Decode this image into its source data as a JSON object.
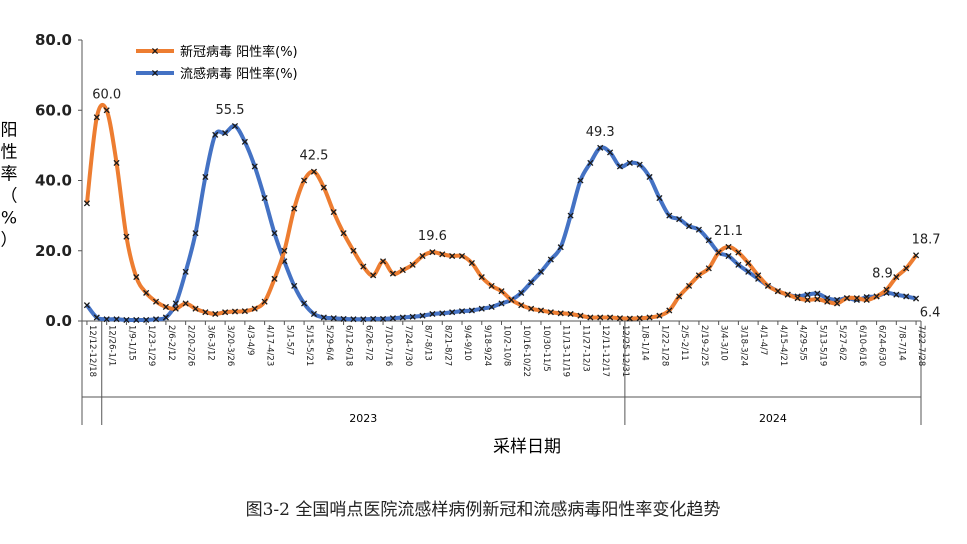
{
  "figure_caption": "图3-2   全国哨点医院流感样病例新冠和流感病毒阳性率变化趋势",
  "chart_data": {
    "type": "line",
    "title": "",
    "xlabel": "采样日期",
    "ylabel": "阳性率（%）",
    "ylim": [
      0,
      80
    ],
    "yticks": [
      "0.0",
      "20.0",
      "40.0",
      "60.0",
      "80.0"
    ],
    "grid": false,
    "legend_position": "top-left",
    "x": [
      "12/12-12/18",
      "12/19-12/25",
      "12/26-1/1",
      "1/2-1/8",
      "1/9-1/15",
      "1/16-1/22",
      "1/23-1/29",
      "1/30-2/5",
      "2/6-2/12",
      "2/13-2/19",
      "2/20-2/26",
      "2/27-3/5",
      "3/6-3/12",
      "3/13-3/19",
      "3/20-3/26",
      "3/27-4/2",
      "4/3-4/9",
      "4/10-4/16",
      "4/17-4/23",
      "4/24-4/30",
      "5/1-5/7",
      "5/8-5/14",
      "5/15-5/21",
      "5/22-5/28",
      "5/29-6/4",
      "6/5-6/11",
      "6/12-6/18",
      "6/19-6/25",
      "6/26-7/2",
      "7/3-7/9",
      "7/10-7/16",
      "7/17-7/23",
      "7/24-7/30",
      "7/31-8/6",
      "8/7-8/13",
      "8/14-8/20",
      "8/21-8/27",
      "8/28-9/3",
      "9/4-9/10",
      "9/11-9/17",
      "9/18-9/24",
      "9/25-10/1",
      "10/2-10/8",
      "10/9-10/15",
      "10/16-10/22",
      "10/23-10/29",
      "10/30-11/5",
      "11/6-11/12",
      "11/13-11/19",
      "11/20-11/26",
      "11/27-12/3",
      "12/4-12/10",
      "12/11-12/17",
      "12/18-12/24",
      "12/25-12/31",
      "1/1-1/7",
      "1/8-1/14",
      "1/15-1/21",
      "1/22-1/28",
      "1/29-2/4",
      "2/5-2/11",
      "2/12-2/18",
      "2/19-2/25",
      "2/26-3/3",
      "3/4-3/10",
      "3/11-3/17",
      "3/18-3/24",
      "3/25-3/31",
      "4/1-4/7",
      "4/8-4/14",
      "4/15-4/21",
      "4/22-4/28",
      "4/29-5/5",
      "5/6-5/12",
      "5/13-5/19",
      "5/20-5/26",
      "5/27-6/2",
      "6/3-6/9",
      "6/10-6/16",
      "6/17-6/23",
      "6/24-6/30",
      "7/1-7/7",
      "7/8-7/14",
      "7/15-7/21",
      "7/22-7/28"
    ],
    "x_tick_labels_shown": [
      "12/12-12/18",
      "12/26-1/1",
      "1/9-1/15",
      "1/23-1/29",
      "2/6-2/12",
      "2/20-2/26",
      "3/6-3/12",
      "3/20-3/26",
      "4/3-4/9",
      "4/17-4/23",
      "5/1-5/7",
      "5/15-5/21",
      "5/29-6/4",
      "6/12-6/18",
      "6/26-7/2",
      "7/10-7/16",
      "7/24-7/30",
      "8/7-8/13",
      "8/21-8/27",
      "9/4-9/10",
      "9/18-9/24",
      "10/2-10/8",
      "10/16-10/22",
      "10/30-11/5",
      "11/13-11/19",
      "11/27-12/3",
      "12/11-12/17",
      "12/25-12/31",
      "1/8-1/14",
      "1/22-1/28",
      "2/5-2/11",
      "2/19-2/25",
      "3/4-3/10",
      "3/18-3/24",
      "4/1-4/7",
      "4/15-4/21",
      "4/29-5/5",
      "5/13-5/19",
      "5/27-6/2",
      "6/10-6/16",
      "6/24-6/30",
      "7/8-7/14",
      "7/22-7/28"
    ],
    "year_groups": [
      {
        "label": "2023",
        "start": 2,
        "end": 54
      },
      {
        "label": "2024",
        "start": 55,
        "end": 84
      }
    ],
    "series": [
      {
        "name": "新冠病毒 阳性率(%)",
        "color": "#ED7D31",
        "values": [
          33.5,
          58.0,
          60.0,
          45.0,
          24.0,
          12.5,
          8.0,
          5.5,
          4.0,
          3.5,
          5.0,
          3.5,
          2.5,
          2.0,
          2.5,
          2.7,
          2.8,
          3.5,
          5.5,
          12.0,
          20.0,
          32.0,
          40.0,
          42.5,
          38.0,
          31.0,
          25.0,
          20.0,
          15.5,
          13.0,
          17.0,
          13.5,
          14.5,
          16.0,
          18.5,
          19.6,
          19.0,
          18.5,
          18.5,
          16.5,
          12.5,
          10.0,
          8.5,
          6.0,
          4.5,
          3.5,
          3.0,
          2.5,
          2.2,
          2.0,
          1.5,
          1.0,
          1.0,
          1.0,
          0.8,
          0.7,
          0.8,
          1.0,
          1.5,
          3.0,
          7.0,
          10.0,
          13.0,
          15.0,
          19.5,
          21.1,
          19.5,
          16.5,
          13.0,
          10.0,
          8.5,
          7.5,
          6.5,
          6.0,
          6.2,
          5.5,
          5.0,
          6.5,
          6.5,
          6.0,
          7.0,
          8.9,
          12.5,
          15.0,
          18.7
        ],
        "labels": [
          {
            "index": 2,
            "text": "60.0"
          },
          {
            "index": 23,
            "text": "42.5"
          },
          {
            "index": 35,
            "text": "19.6"
          },
          {
            "index": 65,
            "text": "21.1"
          },
          {
            "index": 81,
            "text": "8.9"
          },
          {
            "index": 84,
            "text": "18.7"
          }
        ]
      },
      {
        "name": "流感病毒 阳性率(%)",
        "color": "#4472C4",
        "values": [
          4.5,
          1.0,
          0.5,
          0.5,
          0.3,
          0.3,
          0.3,
          0.5,
          1.0,
          5.0,
          14.0,
          25.0,
          41.0,
          53.0,
          53.5,
          55.5,
          51.0,
          44.0,
          35.0,
          25.0,
          17.0,
          10.0,
          5.0,
          2.0,
          1.0,
          0.8,
          0.6,
          0.5,
          0.5,
          0.6,
          0.6,
          0.8,
          1.0,
          1.2,
          1.5,
          2.0,
          2.2,
          2.5,
          2.8,
          3.0,
          3.5,
          4.0,
          5.0,
          6.0,
          8.0,
          11.0,
          14.0,
          17.5,
          21.0,
          30.0,
          40.0,
          45.0,
          49.3,
          48.0,
          44.0,
          45.0,
          44.5,
          41.0,
          35.0,
          30.0,
          29.0,
          27.0,
          26.0,
          23.0,
          19.5,
          18.5,
          16.0,
          14.0,
          12.0,
          10.0,
          8.5,
          7.5,
          7.0,
          7.5,
          7.8,
          6.5,
          6.0,
          6.5,
          6.0,
          6.8,
          7.0,
          8.0,
          7.5,
          7.0,
          6.4
        ],
        "labels": [
          {
            "index": 15,
            "text": "55.5"
          },
          {
            "index": 52,
            "text": "49.3"
          },
          {
            "index": 84,
            "text": "6.4"
          }
        ]
      }
    ]
  }
}
